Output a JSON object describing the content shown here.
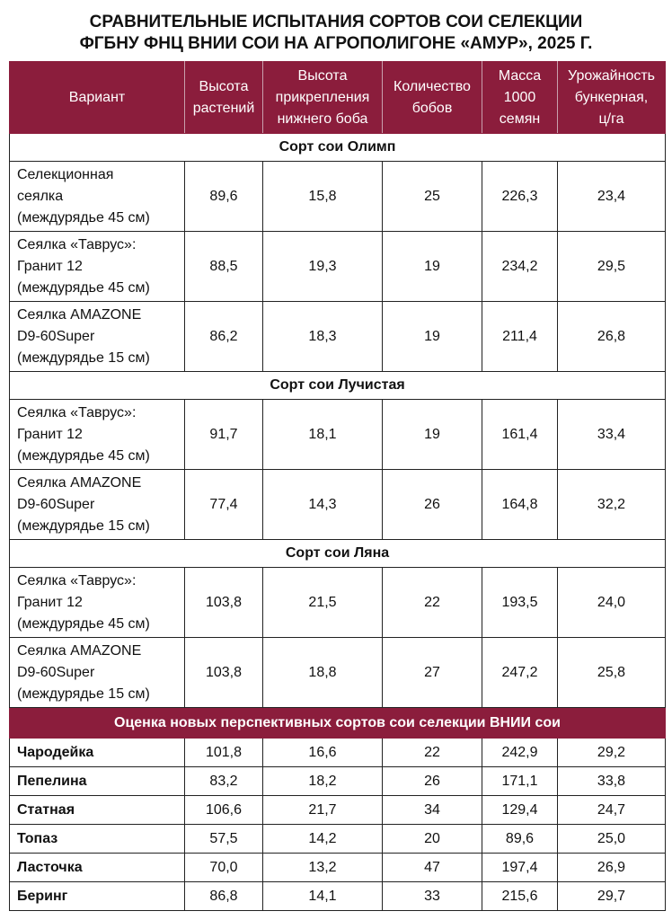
{
  "title": "СРАВНИТЕЛЬНЫЕ ИСПЫТАНИЯ СОРТОВ СОИ СЕЛЕКЦИИ\nФГБНУ ФНЦ ВНИИ СОИ НА АГРОПОЛИГОНЕ «АМУР», 2025 Г.",
  "table": {
    "columns": [
      "Вариант",
      "Высота\nрастений",
      "Высота\nприкрепления\nнижнего боба",
      "Количество\nбобов",
      "Масса\n1000\nсемян",
      "Урожайность\nбункерная,\nц/га"
    ],
    "sections": [
      {
        "title": "Сорт сои Олимп",
        "rows": [
          [
            "Селекционная\nсеялка\n(междурядье 45 см)",
            "89,6",
            "15,8",
            "25",
            "226,3",
            "23,4"
          ],
          [
            "Сеялка «Таврус»:\nГранит 12\n(междурядье 45 см)",
            "88,5",
            "19,3",
            "19",
            "234,2",
            "29,5"
          ],
          [
            "Сеялка AMAZONE\nD9-60Super\n(междурядье 15 см)",
            "86,2",
            "18,3",
            "19",
            "211,4",
            "26,8"
          ]
        ]
      },
      {
        "title": "Сорт сои Лучистая",
        "rows": [
          [
            "Сеялка «Таврус»:\nГранит 12\n(междурядье 45 см)",
            "91,7",
            "18,1",
            "19",
            "161,4",
            "33,4"
          ],
          [
            "Сеялка AMAZONE\nD9-60Super\n(междурядье 15 см)",
            "77,4",
            "14,3",
            "26",
            "164,8",
            "32,2"
          ]
        ]
      },
      {
        "title": "Сорт сои Ляна",
        "rows": [
          [
            "Сеялка «Таврус»:\nГранит 12\n(междурядье 45 см)",
            "103,8",
            "21,5",
            "22",
            "193,5",
            "24,0"
          ],
          [
            "Сеялка AMAZONE\nD9-60Super\n(междурядье 15 см)",
            "103,8",
            "18,8",
            "27",
            "247,2",
            "25,8"
          ]
        ]
      },
      {
        "title": "Оценка новых перспективных сортов сои селекции ВНИИ сои",
        "rows": [
          [
            "Чародейка",
            "101,8",
            "16,6",
            "22",
            "242,9",
            "29,2"
          ],
          [
            "Пепелина",
            "83,2",
            "18,2",
            "26",
            "171,1",
            "33,8"
          ],
          [
            "Статная",
            "106,6",
            "21,7",
            "34",
            "129,4",
            "24,7"
          ],
          [
            "Топаз",
            "57,5",
            "14,2",
            "20",
            "89,6",
            "25,0"
          ],
          [
            "Ласточка",
            "70,0",
            "13,2",
            "47",
            "197,4",
            "26,9"
          ],
          [
            "Беринг",
            "86,8",
            "14,1",
            "33",
            "215,6",
            "29,7"
          ]
        ]
      }
    ]
  }
}
